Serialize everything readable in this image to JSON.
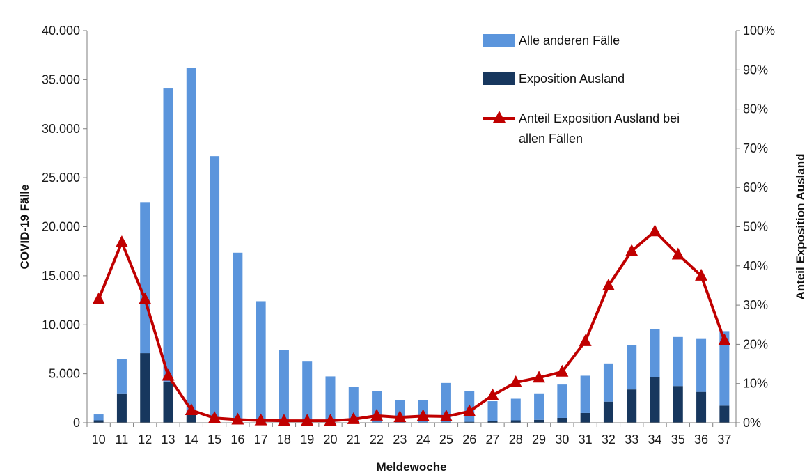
{
  "chart_data": {
    "type": "bar",
    "stacked": true,
    "categories": [
      "10",
      "11",
      "12",
      "13",
      "14",
      "15",
      "16",
      "17",
      "18",
      "19",
      "20",
      "21",
      "22",
      "23",
      "24",
      "25",
      "26",
      "27",
      "28",
      "29",
      "30",
      "31",
      "32",
      "33",
      "34",
      "35",
      "36",
      "37"
    ],
    "series": [
      {
        "name": "Alle anderen Fälle",
        "color": "#5b95dc",
        "axis": "left",
        "values": [
          600,
          3500,
          15400,
          29900,
          35400,
          26900,
          17200,
          12300,
          7400,
          6200,
          4700,
          3600,
          3200,
          2300,
          2300,
          4000,
          3100,
          2050,
          2200,
          2700,
          3400,
          3800,
          3900,
          4500,
          4900,
          5000,
          5400,
          7600
        ]
      },
      {
        "name": "Exposition Ausland",
        "color": "#17375e",
        "axis": "left",
        "values": [
          250,
          3000,
          7100,
          4200,
          800,
          300,
          150,
          100,
          50,
          40,
          30,
          30,
          40,
          30,
          40,
          60,
          100,
          150,
          250,
          300,
          500,
          1000,
          2150,
          3400,
          4650,
          3750,
          3150,
          1750
        ]
      },
      {
        "name": "Anteil Exposition Ausland bei allen Fällen",
        "type": "line",
        "color": "#c00000",
        "axis": "right",
        "values": [
          31.5,
          46.0,
          31.5,
          12.0,
          3.2,
          1.2,
          0.8,
          0.6,
          0.5,
          0.5,
          0.5,
          0.9,
          1.8,
          1.4,
          1.7,
          1.6,
          2.9,
          7.0,
          10.3,
          11.5,
          13.0,
          20.8,
          35.0,
          43.8,
          48.8,
          42.9,
          37.5,
          21.0
        ]
      }
    ],
    "xlabel": "Meldewoche",
    "ylabel": "COVID-19 Fälle",
    "y2label": "Anteil Exposition Ausland",
    "ylim": [
      0,
      40000
    ],
    "y2lim": [
      0,
      100
    ],
    "yticks": [
      "0",
      "5.000",
      "10.000",
      "15.000",
      "20.000",
      "25.000",
      "30.000",
      "35.000",
      "40.000"
    ],
    "y2ticks": [
      "0%",
      "10%",
      "20%",
      "30%",
      "40%",
      "50%",
      "60%",
      "70%",
      "80%",
      "90%",
      "100%"
    ],
    "grid": false,
    "legend": {
      "position": "top-right",
      "entries": [
        "Alle anderen Fälle",
        "Exposition Ausland",
        "Anteil Exposition Ausland bei",
        "allen Fällen"
      ]
    }
  }
}
